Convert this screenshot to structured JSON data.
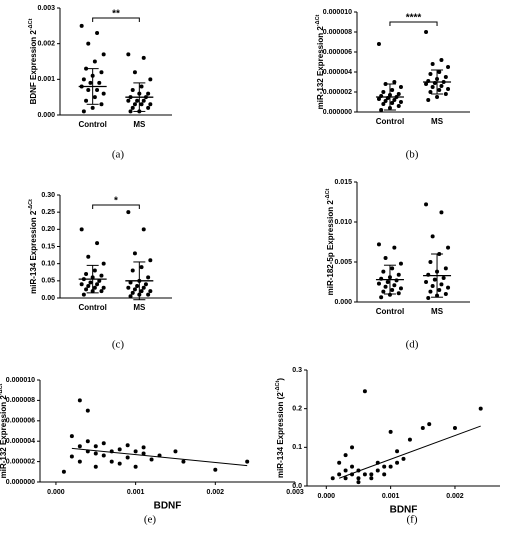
{
  "chart_data": [
    {
      "type": "strip",
      "label": "(a)",
      "ylabel": "BDNF Expression 2",
      "ylabel_sup": "-ΔCt",
      "annotation": "**",
      "ylim": [
        0,
        0.003
      ],
      "yticks": [
        {
          "value": 0,
          "label": "0.000"
        },
        {
          "value": 0.001,
          "label": "0.001"
        },
        {
          "value": 0.002,
          "label": "0.002"
        },
        {
          "value": 0.003,
          "label": "0.003"
        }
      ],
      "series": [
        {
          "name": "Control",
          "color": "#000000",
          "mean": 0.0008,
          "sd": 0.0005,
          "values": [
            0.0025,
            0.0023,
            0.002,
            0.0017,
            0.0015,
            0.0013,
            0.0012,
            0.0011,
            0.001,
            0.0009,
            0.0009,
            0.0008,
            0.0007,
            0.0007,
            0.0006,
            0.0005,
            0.0004,
            0.0003,
            0.0002,
            0.0001
          ]
        },
        {
          "name": "MS",
          "color": "#000000",
          "mean": 0.0005,
          "sd": 0.0004,
          "values": [
            0.0017,
            0.0016,
            0.0012,
            0.001,
            0.0008,
            0.0007,
            0.0006,
            0.0006,
            0.0005,
            0.0005,
            0.0004,
            0.0004,
            0.0004,
            0.0003,
            0.0003,
            0.0003,
            0.0002,
            0.0002,
            0.0001,
            0.0001
          ]
        }
      ]
    },
    {
      "type": "strip",
      "label": "(b)",
      "ylabel": "miR-132 Expression 2",
      "ylabel_sup": "-ΔCt",
      "annotation": "****",
      "ylim": [
        0,
        1e-05
      ],
      "yticks": [
        {
          "value": 0,
          "label": "0.000000"
        },
        {
          "value": 2e-06,
          "label": "0.000002"
        },
        {
          "value": 4e-06,
          "label": "0.000004"
        },
        {
          "value": 6e-06,
          "label": "0.000006"
        },
        {
          "value": 8e-06,
          "label": "0.000008"
        },
        {
          "value": 1e-05,
          "label": "0.000010"
        }
      ],
      "series": [
        {
          "name": "Control",
          "color": "#000000",
          "mean": 1.5e-06,
          "sd": 1.3e-06,
          "values": [
            6.8e-06,
            3e-06,
            2.8e-06,
            2.5e-06,
            2.2e-06,
            2e-06,
            1.8e-06,
            1.7e-06,
            1.6e-06,
            1.5e-06,
            1.4e-06,
            1.3e-06,
            1.2e-06,
            1.1e-06,
            1e-06,
            9e-07,
            8e-07,
            6e-07,
            4e-07,
            2e-07
          ]
        },
        {
          "name": "MS",
          "color": "#000000",
          "mean": 3e-06,
          "sd": 1.2e-06,
          "values": [
            8e-06,
            5.2e-06,
            4.8e-06,
            4.5e-06,
            4e-06,
            3.8e-06,
            3.5e-06,
            3.3e-06,
            3.1e-06,
            3e-06,
            2.9e-06,
            2.8e-06,
            2.6e-06,
            2.5e-06,
            2.3e-06,
            2.2e-06,
            2e-06,
            1.8e-06,
            1.5e-06,
            1.2e-06
          ]
        }
      ]
    },
    {
      "type": "strip",
      "label": "(c)",
      "ylabel": "miR-134 Expression 2",
      "ylabel_sup": "-ΔCt",
      "annotation": "*",
      "ylim": [
        0,
        0.3
      ],
      "yticks": [
        {
          "value": 0,
          "label": "0.00"
        },
        {
          "value": 0.05,
          "label": "0.05"
        },
        {
          "value": 0.1,
          "label": "0.10"
        },
        {
          "value": 0.15,
          "label": "0.15"
        },
        {
          "value": 0.2,
          "label": "0.20"
        },
        {
          "value": 0.25,
          "label": "0.25"
        },
        {
          "value": 0.3,
          "label": "0.30"
        }
      ],
      "series": [
        {
          "name": "Control",
          "color": "#000000",
          "mean": 0.055,
          "sd": 0.04,
          "values": [
            0.2,
            0.16,
            0.12,
            0.1,
            0.08,
            0.07,
            0.065,
            0.06,
            0.055,
            0.05,
            0.045,
            0.04,
            0.04,
            0.035,
            0.03,
            0.03,
            0.025,
            0.02,
            0.02,
            0.01
          ]
        },
        {
          "name": "MS",
          "color": "#000000",
          "mean": 0.05,
          "sd": 0.055,
          "values": [
            0.25,
            0.2,
            0.13,
            0.11,
            0.09,
            0.08,
            0.06,
            0.05,
            0.045,
            0.04,
            0.035,
            0.03,
            0.03,
            0.025,
            0.02,
            0.02,
            0.015,
            0.01,
            0.01,
            0.005
          ]
        }
      ]
    },
    {
      "type": "strip",
      "label": "(d)",
      "ylabel": "miR-182-5p Expression 2",
      "ylabel_sup": "-ΔCt",
      "ylim": [
        0,
        0.015
      ],
      "yticks": [
        {
          "value": 0,
          "label": "0.000"
        },
        {
          "value": 0.005,
          "label": "0.005"
        },
        {
          "value": 0.01,
          "label": "0.010"
        },
        {
          "value": 0.015,
          "label": "0.015"
        }
      ],
      "series": [
        {
          "name": "Control",
          "color": "#000000",
          "mean": 0.0028,
          "sd": 0.0018,
          "values": [
            0.0072,
            0.0068,
            0.0055,
            0.0048,
            0.0042,
            0.0038,
            0.0034,
            0.0031,
            0.0029,
            0.0027,
            0.0025,
            0.0023,
            0.0021,
            0.0019,
            0.0017,
            0.0015,
            0.0013,
            0.0011,
            0.0009,
            0.0006
          ]
        },
        {
          "name": "MS",
          "color": "#000000",
          "mean": 0.0033,
          "sd": 0.0027,
          "values": [
            0.0122,
            0.0112,
            0.0082,
            0.0068,
            0.006,
            0.005,
            0.0042,
            0.0038,
            0.0034,
            0.003,
            0.0028,
            0.0025,
            0.0022,
            0.002,
            0.0018,
            0.0015,
            0.0013,
            0.001,
            0.0008,
            0.0005
          ]
        }
      ]
    },
    {
      "type": "scatter",
      "label": "(e)",
      "ylabel": "miR-132 Expression 2",
      "ylabel_sup": "-ΔCt",
      "xlabel": "BDNF",
      "xlim": [
        -0.0002,
        0.003
      ],
      "xticks": [
        {
          "value": 0,
          "label": "0.000"
        },
        {
          "value": 0.001,
          "label": "0.001"
        },
        {
          "value": 0.002,
          "label": "0.002"
        },
        {
          "value": 0.003,
          "label": "0.003"
        }
      ],
      "ylim": [
        0,
        1e-05
      ],
      "yticks": [
        {
          "value": 0,
          "label": "0.000000"
        },
        {
          "value": 2e-06,
          "label": "0.000002"
        },
        {
          "value": 4e-06,
          "label": "0.000004"
        },
        {
          "value": 6e-06,
          "label": "0.000006"
        },
        {
          "value": 8e-06,
          "label": "0.000008"
        },
        {
          "value": 1e-05,
          "label": "0.000010"
        }
      ],
      "color": "#000000",
      "x": [
        0.0001,
        0.0002,
        0.0002,
        0.0003,
        0.0003,
        0.0003,
        0.0004,
        0.0004,
        0.0004,
        0.0005,
        0.0005,
        0.0005,
        0.0006,
        0.0006,
        0.0007,
        0.0007,
        0.0008,
        0.0008,
        0.0009,
        0.0009,
        0.001,
        0.001,
        0.0011,
        0.0011,
        0.0012,
        0.0013,
        0.0015,
        0.0016,
        0.002,
        0.0024
      ],
      "values": [
        1e-06,
        4.5e-06,
        2.5e-06,
        8e-06,
        3.5e-06,
        2e-06,
        7e-06,
        4e-06,
        3e-06,
        3.5e-06,
        2.8e-06,
        1.5e-06,
        3.8e-06,
        2.6e-06,
        3e-06,
        2e-06,
        3.2e-06,
        1.8e-06,
        2.4e-06,
        3.6e-06,
        3e-06,
        1.5e-06,
        2.8e-06,
        3.4e-06,
        2.2e-06,
        2.6e-06,
        3e-06,
        2e-06,
        1.2e-06,
        2e-06
      ],
      "fit_x": [
        0.0002,
        0.0024
      ],
      "fit_y": [
        3.3e-06,
        1.6e-06
      ]
    },
    {
      "type": "scatter",
      "label": "(f)",
      "ylabel": "miR-134 Expression (2",
      "ylabel_sup": "-ΔCt",
      "ylabel_end": ")",
      "xlabel": "BDNF",
      "xlim": [
        -0.0003,
        0.0027
      ],
      "xticks": [
        {
          "value": 0,
          "label": "0.000"
        },
        {
          "value": 0.001,
          "label": "0.001"
        },
        {
          "value": 0.002,
          "label": "0.002"
        }
      ],
      "ylim": [
        0,
        0.3
      ],
      "yticks": [
        {
          "value": 0,
          "label": "0.0"
        },
        {
          "value": 0.1,
          "label": "0.1"
        },
        {
          "value": 0.2,
          "label": "0.2"
        },
        {
          "value": 0.3,
          "label": "0.3"
        }
      ],
      "color": "#000000",
      "x": [
        0.0001,
        0.0002,
        0.0002,
        0.0003,
        0.0003,
        0.0003,
        0.0004,
        0.0004,
        0.0004,
        0.0005,
        0.0005,
        0.0005,
        0.0006,
        0.0006,
        0.0007,
        0.0007,
        0.0008,
        0.0008,
        0.0009,
        0.0009,
        0.001,
        0.001,
        0.0011,
        0.0011,
        0.0012,
        0.0013,
        0.0015,
        0.0016,
        0.002,
        0.0024
      ],
      "values": [
        0.02,
        0.06,
        0.03,
        0.08,
        0.04,
        0.02,
        0.1,
        0.05,
        0.03,
        0.04,
        0.02,
        0.01,
        0.245,
        0.03,
        0.03,
        0.02,
        0.04,
        0.06,
        0.05,
        0.03,
        0.05,
        0.14,
        0.09,
        0.06,
        0.07,
        0.12,
        0.15,
        0.16,
        0.15,
        0.2
      ],
      "fit_x": [
        0.0002,
        0.0024
      ],
      "fit_y": [
        0.02,
        0.155
      ]
    }
  ]
}
